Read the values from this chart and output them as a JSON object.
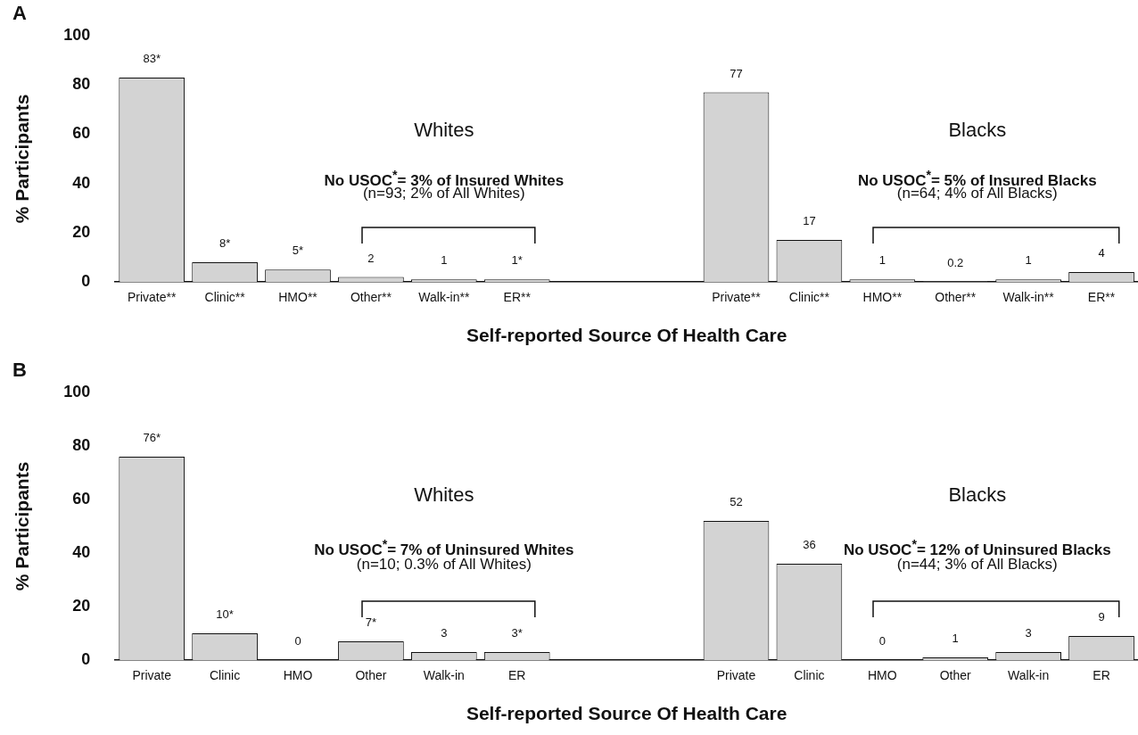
{
  "chart_data": [
    {
      "type": "bar",
      "xlabel": "Self-reported Source Of Health Care",
      "ylabel": "% Participants",
      "categories": [
        "Private**",
        "Clinic**",
        "HMO**",
        "Other**",
        "Walk-in**",
        "ER**",
        null,
        null,
        "Private**",
        "Clinic**",
        "HMO**",
        "Other**",
        "Walk-in**",
        "ER**"
      ],
      "values": [
        83,
        8,
        5,
        2,
        1,
        1,
        null,
        null,
        77,
        17,
        1,
        0.2,
        1,
        4
      ],
      "value_labels": [
        "83*",
        "8*",
        "5*",
        "2",
        "1",
        "1*",
        null,
        null,
        "77",
        "17",
        "1",
        "0.2",
        "1",
        "4"
      ],
      "color": "#d3d3d3",
      "ylim": [
        0,
        100
      ],
      "yticks": [
        0,
        20,
        40,
        60,
        80,
        100
      ],
      "grid": false,
      "legend": false,
      "annotations": [
        "A",
        "Whites",
        "No USOC$^{*}$= 3% of Insured Whites",
        "(n=93; 2% of All Whites)",
        "Blacks",
        "No USOC$^{*}$= 5% of Insured Blacks",
        "(n=64; 4% of All Blacks)"
      ]
    },
    {
      "type": "bar",
      "xlabel": "Self-reported Source Of Health Care",
      "ylabel": "% Participants",
      "categories": [
        "Private",
        "Clinic",
        "HMO",
        "Other",
        "Walk-in",
        "ER",
        null,
        null,
        "Private",
        "Clinic",
        "HMO",
        "Other",
        "Walk-in",
        "ER"
      ],
      "values": [
        76,
        10,
        0,
        7,
        3,
        3,
        null,
        null,
        52,
        36,
        0,
        1,
        3,
        9
      ],
      "value_labels": [
        "76*",
        "10*",
        "0",
        "7*",
        "3",
        "3*",
        null,
        null,
        "52",
        "36",
        "0",
        "1",
        "3",
        "9"
      ],
      "color": "#d3d3d3",
      "ylim": [
        0,
        100
      ],
      "yticks": [
        0,
        20,
        40,
        60,
        80,
        100
      ],
      "grid": false,
      "legend": false,
      "annotations": [
        "B",
        "Whites",
        "No USOC$^{*}$= 7% of Uninsured Whites",
        "(n=10; 0.3% of All Whites)",
        "Blacks",
        "No USOC$^{*}$= 12% of Uninsured Blacks",
        "(n=44; 3% of All Blacks)"
      ]
    }
  ]
}
